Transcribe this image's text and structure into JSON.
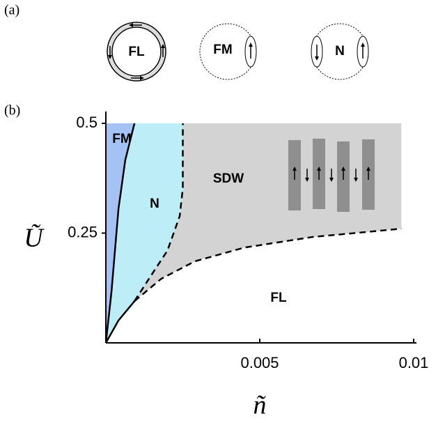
{
  "panel_a": {
    "label": "(a)",
    "states": [
      "FL",
      "FM",
      "N"
    ]
  },
  "chart_data": {
    "type": "phase_diagram",
    "label": "(b)",
    "xlabel": "ñ",
    "ylabel": "Ũ",
    "xlim": [
      0,
      0.01
    ],
    "ylim": [
      0,
      0.5
    ],
    "xticks": [
      0.005,
      0.01
    ],
    "yticks": [
      0.25,
      0.5
    ],
    "regions": [
      {
        "name": "FM",
        "color": "#a4c2f4"
      },
      {
        "name": "N",
        "color": "#bdeef8"
      },
      {
        "name": "SDW",
        "color": "#d3d3d3"
      },
      {
        "name": "FL",
        "color": "#ffffff"
      }
    ],
    "boundaries": [
      {
        "style": "solid",
        "x": [
          0,
          0.00018,
          0.00041,
          0.00063,
          0.00093
        ],
        "y": [
          0,
          0.114,
          0.305,
          0.416,
          0.5
        ]
      },
      {
        "style": "dashed",
        "x": [
          0.00093,
          0.0014,
          0.002,
          0.0024,
          0.0025,
          0.0025,
          0.0025
        ],
        "y": [
          0.095,
          0.146,
          0.21,
          0.289,
          0.352,
          0.416,
          0.5
        ]
      },
      {
        "style": "solid",
        "x": [
          0,
          0.00041,
          0.00093
        ],
        "y": [
          0,
          0.051,
          0.095
        ]
      },
      {
        "style": "dashed",
        "x": [
          0.00093,
          0.0018,
          0.0029,
          0.0045,
          0.0067,
          0.0096
        ],
        "y": [
          0.095,
          0.146,
          0.186,
          0.217,
          0.241,
          0.26
        ]
      }
    ]
  }
}
